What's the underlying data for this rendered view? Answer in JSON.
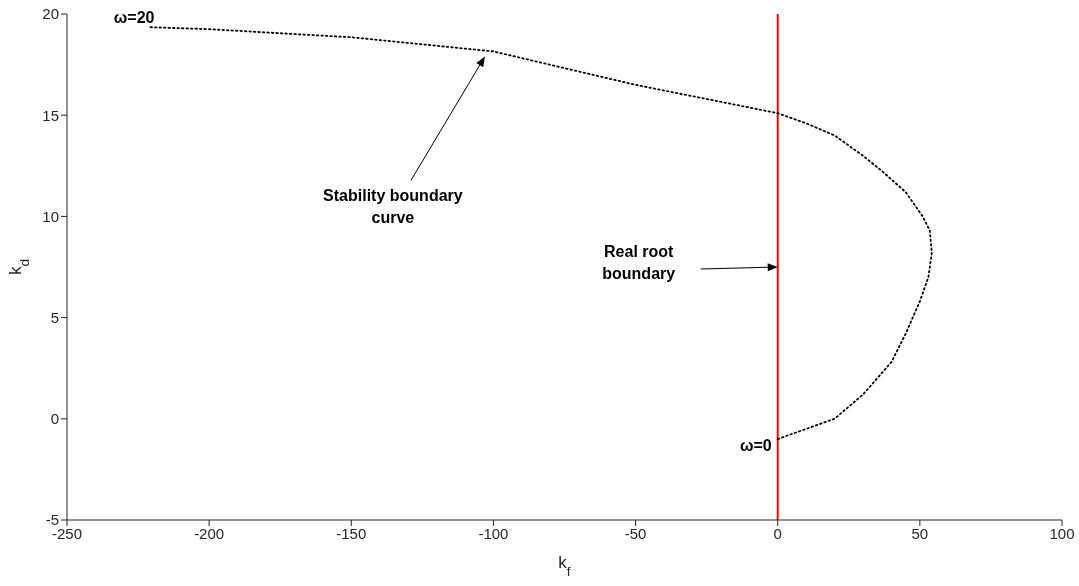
{
  "chart_data": {
    "type": "line",
    "xlabel": "k$_{f}$",
    "ylabel": "k$_{d}$",
    "xlim": [
      -250,
      100
    ],
    "xticks": [
      -250,
      -200,
      -150,
      -100,
      -50,
      0,
      50,
      100
    ],
    "ylim": [
      -5,
      20
    ],
    "yticks": [
      -5,
      0,
      5,
      10,
      15,
      20
    ],
    "grid": false,
    "legend": false,
    "marker": "none",
    "line_style": "dotted",
    "series": [
      {
        "color": "#000000",
        "x": [
          0,
          10,
          20,
          30,
          40,
          45,
          50,
          53,
          54.2,
          53.5,
          51,
          45,
          37,
          30,
          20,
          10,
          0,
          -50,
          -100,
          -150,
          -200,
          -221
        ],
        "values": [
          -1,
          -0.5,
          0,
          1.2,
          2.8,
          4.2,
          5.8,
          7,
          8.2,
          9.3,
          10,
          11.2,
          12.2,
          13,
          14,
          14.6,
          15.1,
          16.5,
          18.15,
          18.85,
          19.25,
          19.35
        ]
      }
    ],
    "ref_lines": [
      {
        "axis": "x",
        "value": 0,
        "color": "#ff0000"
      }
    ],
    "annotations": [
      {
        "text": "ω=20",
        "x": -221,
        "y": 19.35
      },
      {
        "text": "ω=0",
        "x": 0,
        "y": -1
      },
      "Stability boundary curve",
      "Real root boundary"
    ]
  }
}
